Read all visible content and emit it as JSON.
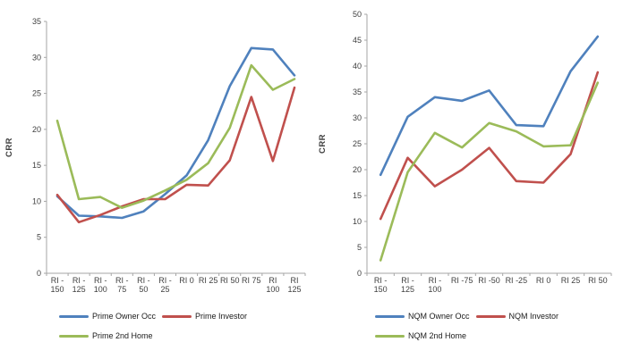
{
  "figure": {
    "background": "#FFFFFF",
    "axis_line_color": "#A6A6A6",
    "tick_text_color": "#3F3F3F",
    "legend_text_color": "#1A1A1A"
  },
  "chart_data": [
    {
      "type": "line",
      "title": "",
      "xlabel": "",
      "ylabel": "CRR",
      "ylim": [
        0,
        35
      ],
      "ytick_step": 5,
      "grid": false,
      "legend_position": "bottom",
      "markers": false,
      "categories": [
        "RI -150",
        "RI -125",
        "RI -100",
        "RI -75",
        "RI -50",
        "RI -25",
        "RI 0",
        "RI 25",
        "RI 50",
        "RI 75",
        "RI 100",
        "RI 125"
      ],
      "category_label_lines": [
        [
          "RI -",
          "150"
        ],
        [
          "RI -",
          "125"
        ],
        [
          "RI -",
          "100"
        ],
        [
          "RI -",
          "75"
        ],
        [
          "RI -",
          "50"
        ],
        [
          "RI -",
          "25"
        ],
        [
          "RI 0"
        ],
        [
          "RI 25"
        ],
        [
          "RI 50"
        ],
        [
          "RI 75"
        ],
        [
          "RI",
          "100"
        ],
        [
          "RI",
          "125"
        ]
      ],
      "series": [
        {
          "name": "Prime Owner Occ",
          "color": "#4F81BD",
          "values": [
            10.7,
            8.0,
            7.9,
            7.7,
            8.6,
            11.0,
            13.6,
            18.5,
            26.0,
            31.3,
            31.1,
            27.5
          ]
        },
        {
          "name": "Prime Investor",
          "color": "#C0504D",
          "values": [
            10.9,
            7.1,
            8.1,
            9.3,
            10.3,
            10.3,
            12.3,
            12.2,
            15.7,
            24.5,
            15.6,
            25.8
          ]
        },
        {
          "name": "Prime 2nd Home",
          "color": "#9BBB59",
          "values": [
            21.2,
            10.3,
            10.6,
            9.1,
            10.1,
            11.5,
            13.0,
            15.3,
            20.2,
            28.9,
            25.5,
            27.0
          ]
        }
      ]
    },
    {
      "type": "line",
      "title": "",
      "xlabel": "",
      "ylabel": "CRR",
      "ylim": [
        0,
        50
      ],
      "ytick_step": 5,
      "grid": false,
      "legend_position": "bottom",
      "markers": false,
      "categories": [
        "RI -150",
        "RI -125",
        "RI -100",
        "RI -75",
        "RI -50",
        "RI -25",
        "RI 0",
        "RI 25",
        "RI 50"
      ],
      "category_label_lines": [
        [
          "RI -",
          "150"
        ],
        [
          "RI -",
          "125"
        ],
        [
          "RI -",
          "100"
        ],
        [
          "RI -75"
        ],
        [
          "RI -50"
        ],
        [
          "RI -25"
        ],
        [
          "RI 0"
        ],
        [
          "RI 25"
        ],
        [
          "RI 50"
        ]
      ],
      "series": [
        {
          "name": "NQM Owner Occ",
          "color": "#4F81BD",
          "values": [
            19.0,
            30.2,
            34.0,
            33.3,
            35.3,
            28.6,
            28.4,
            39.0,
            45.7
          ]
        },
        {
          "name": "NQM Investor",
          "color": "#C0504D",
          "values": [
            10.5,
            22.3,
            16.8,
            20.0,
            24.2,
            17.8,
            17.5,
            23.0,
            38.8
          ]
        },
        {
          "name": "NQM 2nd Home",
          "color": "#9BBB59",
          "values": [
            2.5,
            19.5,
            27.1,
            24.3,
            29.0,
            27.4,
            24.5,
            24.7,
            36.8
          ]
        }
      ]
    }
  ]
}
